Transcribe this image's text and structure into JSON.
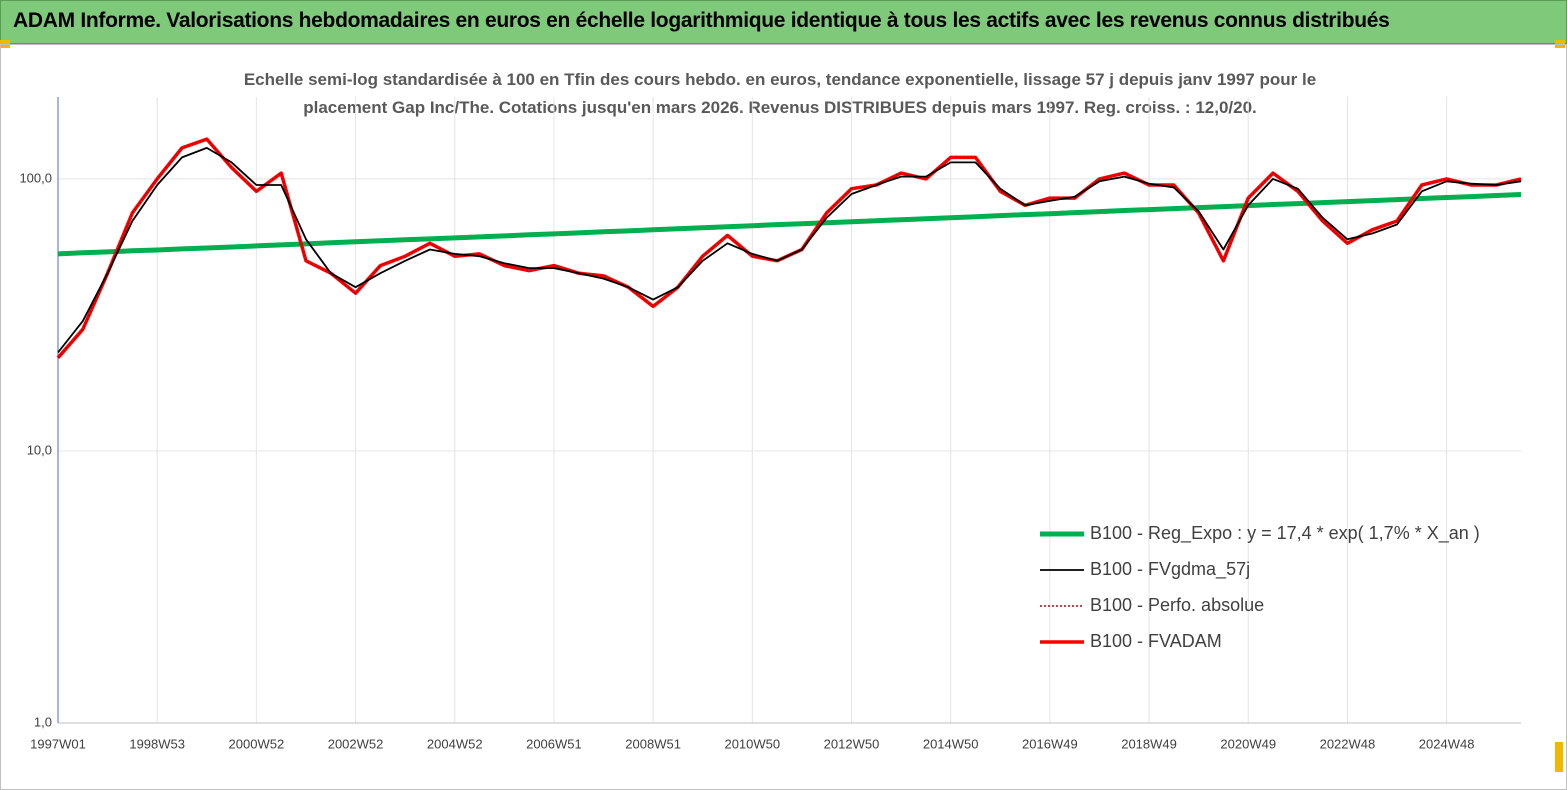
{
  "header": {
    "title": "ADAM Informe. Valorisations hebdomadaires en euros en échelle logarithmique identique à tous les actifs avec les revenus connus distribués"
  },
  "chart_data": {
    "type": "line",
    "title": "Echelle semi-log standardisée à 100 en Tfin des cours hebdo. en euros, tendance exponentielle, lissage 57 j depuis janv 1997 pour le placement Gap Inc/The. Cotations jusqu'en mars 2026. Revenus DISTRIBUES depuis mars 1997. Reg. croiss. : 12,0/20.",
    "categories": [
      "1997W01",
      null,
      null,
      null,
      "1998W53",
      null,
      null,
      null,
      "2000W52",
      null,
      null,
      null,
      "2002W52",
      null,
      null,
      null,
      "2004W52",
      null,
      null,
      null,
      "2006W51",
      null,
      null,
      null,
      "2008W51",
      null,
      null,
      null,
      "2010W50",
      null,
      null,
      null,
      "2012W50",
      null,
      null,
      null,
      "2014W50",
      null,
      null,
      null,
      "2016W49",
      null,
      null,
      null,
      "2018W49",
      null,
      null,
      null,
      "2020W49",
      null,
      null,
      null,
      "2022W48",
      null,
      null,
      null,
      "2024W48",
      null,
      null,
      null
    ],
    "y_scale": "log",
    "ylim": [
      1,
      200
    ],
    "yticks": [
      {
        "value": 1,
        "label": "1,0"
      },
      {
        "value": 10,
        "label": "10,0"
      },
      {
        "value": 100,
        "label": "100,0"
      }
    ],
    "grid": true,
    "legend": "lower right",
    "series": [
      {
        "name": "B100 - Reg_Expo : y = 17,4 * exp( 1,7% *  X_an )",
        "color": "#00b050",
        "line_style": "solid",
        "values": [
          53.0,
          53.5,
          53.9,
          54.4,
          54.8,
          55.3,
          55.7,
          56.2,
          56.7,
          57.2,
          57.7,
          58.2,
          58.7,
          59.2,
          59.7,
          60.2,
          60.7,
          61.2,
          61.7,
          62.3,
          62.8,
          63.3,
          63.9,
          64.4,
          65.0,
          65.6,
          66.1,
          66.7,
          67.3,
          67.9,
          68.4,
          69.0,
          69.6,
          70.2,
          70.8,
          71.4,
          72.0,
          72.6,
          73.3,
          73.9,
          74.5,
          75.2,
          75.8,
          76.5,
          77.1,
          77.8,
          78.4,
          79.1,
          79.8,
          80.5,
          81.1,
          81.8,
          82.5,
          83.2,
          83.9,
          84.7,
          85.4,
          86.1,
          86.9,
          87.6
        ]
      },
      {
        "name": "B100 - FVgdma_57j",
        "color": "#000000",
        "line_style": "solid",
        "values": [
          23,
          30,
          45,
          70,
          95,
          120,
          130,
          115,
          95,
          95,
          60,
          45,
          40,
          45,
          50,
          55,
          53,
          52,
          49,
          47,
          47,
          45,
          43,
          40,
          36,
          40,
          50,
          58,
          53,
          50,
          55,
          72,
          88,
          95,
          102,
          102,
          115,
          115,
          92,
          80,
          83,
          86,
          98,
          102,
          96,
          93,
          76,
          55,
          80,
          100,
          92,
          72,
          60,
          63,
          68,
          90,
          98,
          96,
          95,
          98
        ]
      },
      {
        "name": "B100 - Perfo. absolue",
        "color": "#c00000",
        "line_style": "dotted",
        "values": [
          22,
          28,
          45,
          75,
          100,
          130,
          140,
          110,
          90,
          105,
          50,
          45,
          38,
          48,
          52,
          58,
          52,
          53,
          48,
          46,
          48,
          45,
          44,
          40,
          34,
          40,
          52,
          62,
          52,
          50,
          55,
          75,
          92,
          95,
          105,
          100,
          120,
          120,
          90,
          80,
          85,
          85,
          100,
          105,
          95,
          95,
          75,
          50,
          85,
          105,
          90,
          70,
          58,
          65,
          70,
          95,
          100,
          95,
          95,
          100
        ]
      },
      {
        "name": "B100 - FVADAM",
        "color": "#ff0000",
        "line_style": "solid",
        "values": [
          22,
          28,
          45,
          75,
          100,
          130,
          140,
          110,
          90,
          105,
          50,
          45,
          38,
          48,
          52,
          58,
          52,
          53,
          48,
          46,
          48,
          45,
          44,
          40,
          34,
          40,
          52,
          62,
          52,
          50,
          55,
          75,
          92,
          95,
          105,
          100,
          120,
          120,
          90,
          80,
          85,
          85,
          100,
          105,
          95,
          95,
          75,
          50,
          85,
          105,
          90,
          70,
          58,
          65,
          70,
          95,
          100,
          95,
          95,
          100
        ]
      }
    ]
  }
}
